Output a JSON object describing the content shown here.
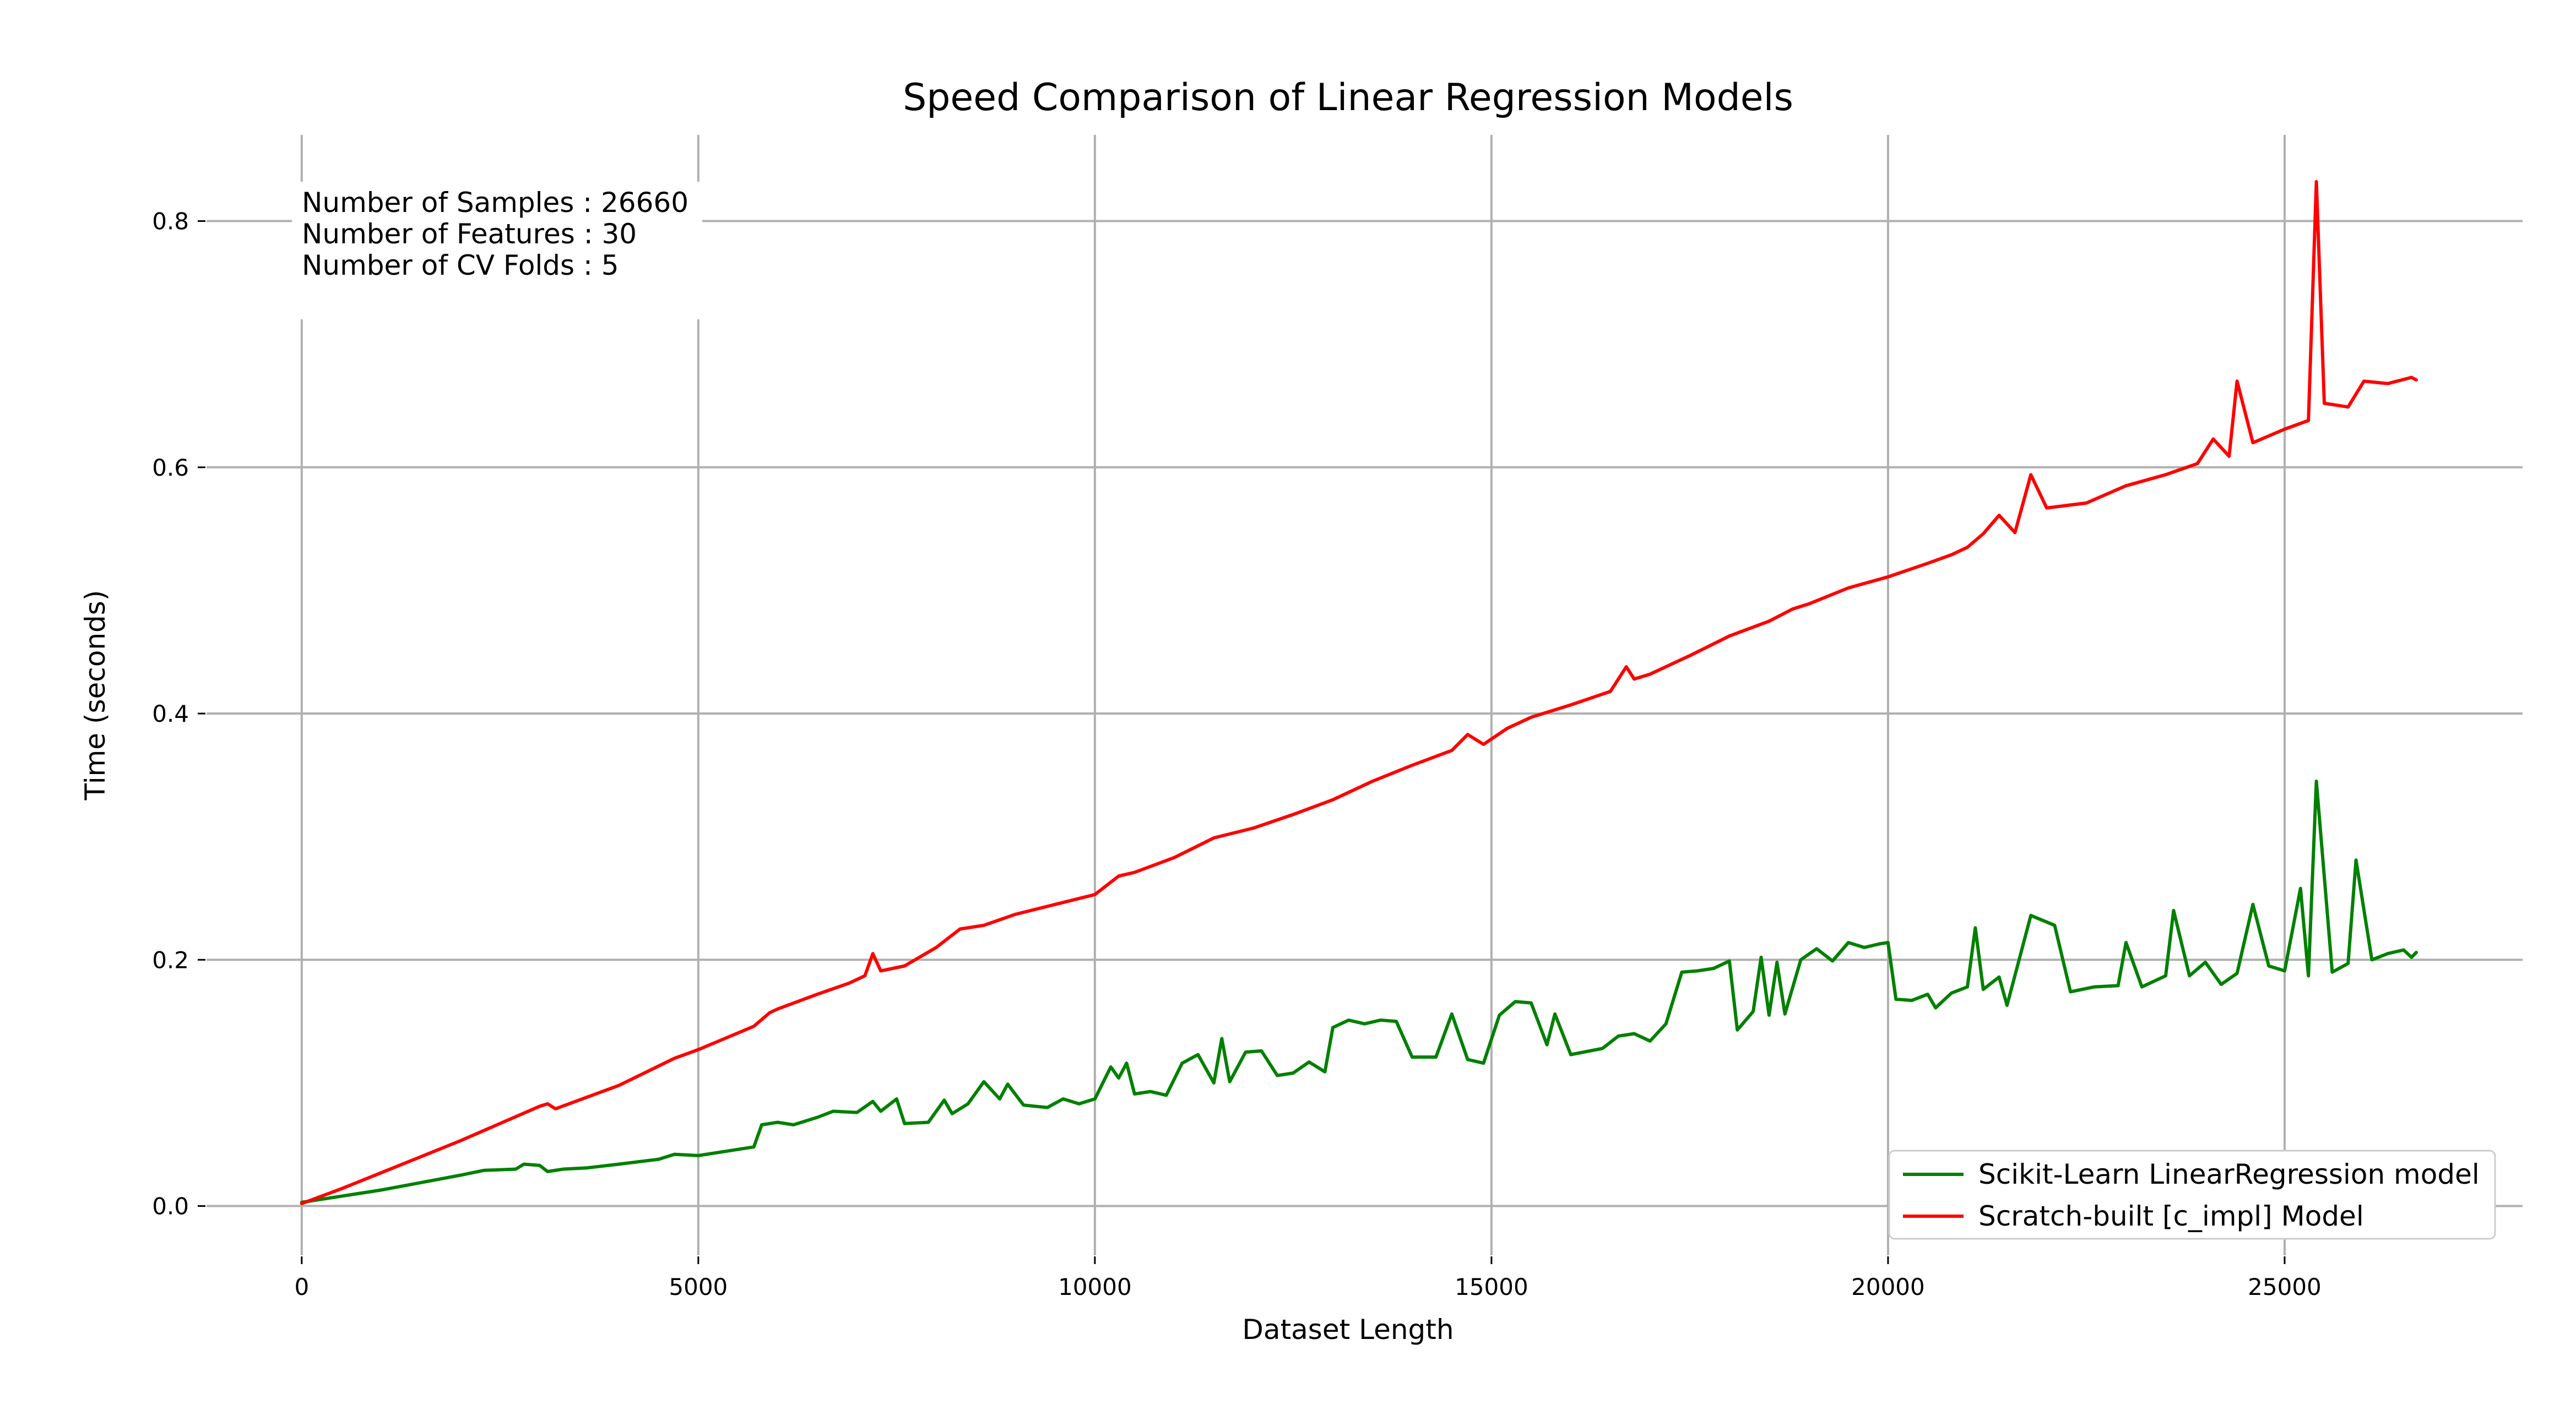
{
  "chart_data": {
    "type": "line",
    "title": "Speed Comparison of Linear Regression Models",
    "xlabel": "Dataset Length",
    "ylabel": "Time (seconds)",
    "xlim": [
      -1200,
      28000
    ],
    "ylim": [
      -0.04,
      0.87
    ],
    "xticks": [
      0,
      5000,
      10000,
      15000,
      20000,
      25000
    ],
    "yticks": [
      0.0,
      0.2,
      0.4,
      0.6,
      0.8
    ],
    "xtick_labels": [
      "0",
      "5000",
      "10000",
      "15000",
      "20000",
      "25000"
    ],
    "ytick_labels": [
      "0.0",
      "0.2",
      "0.4",
      "0.6",
      "0.8"
    ],
    "grid": true,
    "legend_position": "lower-right",
    "annotation": [
      "Number of Samples : 26660",
      "Number of Features : 30",
      "Number of CV Folds : 5"
    ],
    "series": [
      {
        "name": "Scikit-Learn LinearRegression model",
        "color": "#008000",
        "points": [
          [
            0,
            0.003
          ],
          [
            500,
            0.008
          ],
          [
            1000,
            0.013
          ],
          [
            1500,
            0.019
          ],
          [
            2000,
            0.025
          ],
          [
            2300,
            0.029
          ],
          [
            2700,
            0.03
          ],
          [
            2800,
            0.034
          ],
          [
            3000,
            0.033
          ],
          [
            3100,
            0.028
          ],
          [
            3300,
            0.03
          ],
          [
            3600,
            0.031
          ],
          [
            4000,
            0.034
          ],
          [
            4500,
            0.038
          ],
          [
            4700,
            0.042
          ],
          [
            5000,
            0.041
          ],
          [
            5300,
            0.044
          ],
          [
            5700,
            0.048
          ],
          [
            5800,
            0.066
          ],
          [
            6000,
            0.068
          ],
          [
            6200,
            0.066
          ],
          [
            6500,
            0.072
          ],
          [
            6700,
            0.077
          ],
          [
            7000,
            0.076
          ],
          [
            7200,
            0.085
          ],
          [
            7300,
            0.077
          ],
          [
            7500,
            0.087
          ],
          [
            7600,
            0.067
          ],
          [
            7900,
            0.068
          ],
          [
            8100,
            0.086
          ],
          [
            8200,
            0.075
          ],
          [
            8400,
            0.083
          ],
          [
            8600,
            0.101
          ],
          [
            8800,
            0.087
          ],
          [
            8900,
            0.099
          ],
          [
            9100,
            0.082
          ],
          [
            9400,
            0.08
          ],
          [
            9600,
            0.087
          ],
          [
            9800,
            0.083
          ],
          [
            10000,
            0.087
          ],
          [
            10200,
            0.113
          ],
          [
            10300,
            0.104
          ],
          [
            10400,
            0.116
          ],
          [
            10500,
            0.091
          ],
          [
            10700,
            0.093
          ],
          [
            10900,
            0.09
          ],
          [
            11100,
            0.116
          ],
          [
            11300,
            0.123
          ],
          [
            11500,
            0.1
          ],
          [
            11600,
            0.136
          ],
          [
            11700,
            0.101
          ],
          [
            11900,
            0.125
          ],
          [
            12100,
            0.126
          ],
          [
            12300,
            0.106
          ],
          [
            12500,
            0.108
          ],
          [
            12700,
            0.117
          ],
          [
            12900,
            0.109
          ],
          [
            13000,
            0.145
          ],
          [
            13200,
            0.151
          ],
          [
            13400,
            0.148
          ],
          [
            13600,
            0.151
          ],
          [
            13800,
            0.15
          ],
          [
            14000,
            0.121
          ],
          [
            14300,
            0.121
          ],
          [
            14500,
            0.156
          ],
          [
            14700,
            0.119
          ],
          [
            14900,
            0.116
          ],
          [
            15100,
            0.155
          ],
          [
            15300,
            0.166
          ],
          [
            15500,
            0.165
          ],
          [
            15700,
            0.131
          ],
          [
            15800,
            0.156
          ],
          [
            16000,
            0.123
          ],
          [
            16400,
            0.128
          ],
          [
            16600,
            0.138
          ],
          [
            16800,
            0.14
          ],
          [
            17000,
            0.134
          ],
          [
            17200,
            0.148
          ],
          [
            17400,
            0.19
          ],
          [
            17600,
            0.191
          ],
          [
            17800,
            0.193
          ],
          [
            18000,
            0.199
          ],
          [
            18100,
            0.143
          ],
          [
            18300,
            0.158
          ],
          [
            18400,
            0.202
          ],
          [
            18500,
            0.155
          ],
          [
            18600,
            0.198
          ],
          [
            18700,
            0.156
          ],
          [
            18900,
            0.2
          ],
          [
            19100,
            0.209
          ],
          [
            19300,
            0.199
          ],
          [
            19500,
            0.214
          ],
          [
            19700,
            0.21
          ],
          [
            19900,
            0.213
          ],
          [
            20000,
            0.214
          ],
          [
            20100,
            0.168
          ],
          [
            20300,
            0.167
          ],
          [
            20500,
            0.172
          ],
          [
            20600,
            0.161
          ],
          [
            20800,
            0.173
          ],
          [
            21000,
            0.178
          ],
          [
            21100,
            0.226
          ],
          [
            21200,
            0.176
          ],
          [
            21400,
            0.186
          ],
          [
            21500,
            0.163
          ],
          [
            21800,
            0.236
          ],
          [
            22100,
            0.228
          ],
          [
            22300,
            0.174
          ],
          [
            22600,
            0.178
          ],
          [
            22900,
            0.179
          ],
          [
            23000,
            0.214
          ],
          [
            23200,
            0.178
          ],
          [
            23500,
            0.187
          ],
          [
            23600,
            0.24
          ],
          [
            23800,
            0.187
          ],
          [
            24000,
            0.198
          ],
          [
            24200,
            0.18
          ],
          [
            24400,
            0.189
          ],
          [
            24600,
            0.245
          ],
          [
            24800,
            0.195
          ],
          [
            25000,
            0.191
          ],
          [
            25200,
            0.258
          ],
          [
            25300,
            0.187
          ],
          [
            25400,
            0.345
          ],
          [
            25600,
            0.19
          ],
          [
            25800,
            0.197
          ],
          [
            25900,
            0.281
          ],
          [
            26100,
            0.2
          ],
          [
            26300,
            0.205
          ],
          [
            26500,
            0.208
          ],
          [
            26600,
            0.202
          ],
          [
            26660,
            0.206
          ]
        ]
      },
      {
        "name": "Scratch-built [c_impl] Model",
        "color": "#ff0000",
        "points": [
          [
            0,
            0.002
          ],
          [
            500,
            0.014
          ],
          [
            1000,
            0.027
          ],
          [
            2000,
            0.053
          ],
          [
            3000,
            0.081
          ],
          [
            3100,
            0.083
          ],
          [
            3200,
            0.079
          ],
          [
            4000,
            0.098
          ],
          [
            4700,
            0.12
          ],
          [
            5000,
            0.127
          ],
          [
            5700,
            0.146
          ],
          [
            5900,
            0.157
          ],
          [
            6000,
            0.16
          ],
          [
            6500,
            0.172
          ],
          [
            6900,
            0.181
          ],
          [
            7100,
            0.187
          ],
          [
            7200,
            0.205
          ],
          [
            7300,
            0.191
          ],
          [
            7600,
            0.195
          ],
          [
            8000,
            0.21
          ],
          [
            8300,
            0.225
          ],
          [
            8600,
            0.228
          ],
          [
            9000,
            0.237
          ],
          [
            9500,
            0.245
          ],
          [
            10000,
            0.253
          ],
          [
            10300,
            0.268
          ],
          [
            10500,
            0.271
          ],
          [
            11000,
            0.283
          ],
          [
            11500,
            0.299
          ],
          [
            12000,
            0.307
          ],
          [
            12500,
            0.318
          ],
          [
            13000,
            0.33
          ],
          [
            13500,
            0.345
          ],
          [
            14000,
            0.358
          ],
          [
            14500,
            0.37
          ],
          [
            14700,
            0.383
          ],
          [
            14900,
            0.375
          ],
          [
            15200,
            0.388
          ],
          [
            15500,
            0.397
          ],
          [
            16000,
            0.407
          ],
          [
            16500,
            0.418
          ],
          [
            16700,
            0.438
          ],
          [
            16800,
            0.428
          ],
          [
            17000,
            0.432
          ],
          [
            17500,
            0.447
          ],
          [
            18000,
            0.463
          ],
          [
            18500,
            0.475
          ],
          [
            18800,
            0.485
          ],
          [
            19000,
            0.489
          ],
          [
            19500,
            0.502
          ],
          [
            20000,
            0.511
          ],
          [
            20500,
            0.522
          ],
          [
            20800,
            0.529
          ],
          [
            21000,
            0.535
          ],
          [
            21200,
            0.546
          ],
          [
            21400,
            0.561
          ],
          [
            21600,
            0.547
          ],
          [
            21800,
            0.594
          ],
          [
            22000,
            0.567
          ],
          [
            22500,
            0.571
          ],
          [
            23000,
            0.585
          ],
          [
            23500,
            0.594
          ],
          [
            23900,
            0.603
          ],
          [
            24100,
            0.623
          ],
          [
            24300,
            0.609
          ],
          [
            24400,
            0.67
          ],
          [
            24600,
            0.62
          ],
          [
            25000,
            0.631
          ],
          [
            25300,
            0.638
          ],
          [
            25400,
            0.832
          ],
          [
            25500,
            0.652
          ],
          [
            25800,
            0.649
          ],
          [
            26000,
            0.67
          ],
          [
            26300,
            0.668
          ],
          [
            26600,
            0.673
          ],
          [
            26660,
            0.671
          ]
        ]
      }
    ]
  }
}
